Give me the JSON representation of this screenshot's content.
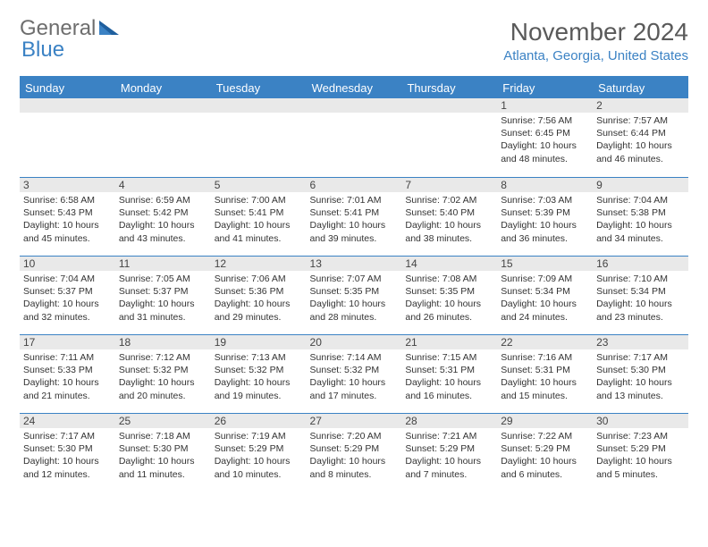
{
  "logo": {
    "part1": "General",
    "part2": "Blue"
  },
  "title": "November 2024",
  "location": "Atlanta, Georgia, United States",
  "colors": {
    "accent": "#3b82c4",
    "headerText": "#ffffff",
    "dayBar": "#e9e9e9",
    "text": "#333333",
    "logoGray": "#6e6e6e"
  },
  "dow": [
    "Sunday",
    "Monday",
    "Tuesday",
    "Wednesday",
    "Thursday",
    "Friday",
    "Saturday"
  ],
  "startOffset": 5,
  "days": [
    {
      "n": "1",
      "sunrise": "7:56 AM",
      "sunset": "6:45 PM",
      "daylight": "10 hours and 48 minutes."
    },
    {
      "n": "2",
      "sunrise": "7:57 AM",
      "sunset": "6:44 PM",
      "daylight": "10 hours and 46 minutes."
    },
    {
      "n": "3",
      "sunrise": "6:58 AM",
      "sunset": "5:43 PM",
      "daylight": "10 hours and 45 minutes."
    },
    {
      "n": "4",
      "sunrise": "6:59 AM",
      "sunset": "5:42 PM",
      "daylight": "10 hours and 43 minutes."
    },
    {
      "n": "5",
      "sunrise": "7:00 AM",
      "sunset": "5:41 PM",
      "daylight": "10 hours and 41 minutes."
    },
    {
      "n": "6",
      "sunrise": "7:01 AM",
      "sunset": "5:41 PM",
      "daylight": "10 hours and 39 minutes."
    },
    {
      "n": "7",
      "sunrise": "7:02 AM",
      "sunset": "5:40 PM",
      "daylight": "10 hours and 38 minutes."
    },
    {
      "n": "8",
      "sunrise": "7:03 AM",
      "sunset": "5:39 PM",
      "daylight": "10 hours and 36 minutes."
    },
    {
      "n": "9",
      "sunrise": "7:04 AM",
      "sunset": "5:38 PM",
      "daylight": "10 hours and 34 minutes."
    },
    {
      "n": "10",
      "sunrise": "7:04 AM",
      "sunset": "5:37 PM",
      "daylight": "10 hours and 32 minutes."
    },
    {
      "n": "11",
      "sunrise": "7:05 AM",
      "sunset": "5:37 PM",
      "daylight": "10 hours and 31 minutes."
    },
    {
      "n": "12",
      "sunrise": "7:06 AM",
      "sunset": "5:36 PM",
      "daylight": "10 hours and 29 minutes."
    },
    {
      "n": "13",
      "sunrise": "7:07 AM",
      "sunset": "5:35 PM",
      "daylight": "10 hours and 28 minutes."
    },
    {
      "n": "14",
      "sunrise": "7:08 AM",
      "sunset": "5:35 PM",
      "daylight": "10 hours and 26 minutes."
    },
    {
      "n": "15",
      "sunrise": "7:09 AM",
      "sunset": "5:34 PM",
      "daylight": "10 hours and 24 minutes."
    },
    {
      "n": "16",
      "sunrise": "7:10 AM",
      "sunset": "5:34 PM",
      "daylight": "10 hours and 23 minutes."
    },
    {
      "n": "17",
      "sunrise": "7:11 AM",
      "sunset": "5:33 PM",
      "daylight": "10 hours and 21 minutes."
    },
    {
      "n": "18",
      "sunrise": "7:12 AM",
      "sunset": "5:32 PM",
      "daylight": "10 hours and 20 minutes."
    },
    {
      "n": "19",
      "sunrise": "7:13 AM",
      "sunset": "5:32 PM",
      "daylight": "10 hours and 19 minutes."
    },
    {
      "n": "20",
      "sunrise": "7:14 AM",
      "sunset": "5:32 PM",
      "daylight": "10 hours and 17 minutes."
    },
    {
      "n": "21",
      "sunrise": "7:15 AM",
      "sunset": "5:31 PM",
      "daylight": "10 hours and 16 minutes."
    },
    {
      "n": "22",
      "sunrise": "7:16 AM",
      "sunset": "5:31 PM",
      "daylight": "10 hours and 15 minutes."
    },
    {
      "n": "23",
      "sunrise": "7:17 AM",
      "sunset": "5:30 PM",
      "daylight": "10 hours and 13 minutes."
    },
    {
      "n": "24",
      "sunrise": "7:17 AM",
      "sunset": "5:30 PM",
      "daylight": "10 hours and 12 minutes."
    },
    {
      "n": "25",
      "sunrise": "7:18 AM",
      "sunset": "5:30 PM",
      "daylight": "10 hours and 11 minutes."
    },
    {
      "n": "26",
      "sunrise": "7:19 AM",
      "sunset": "5:29 PM",
      "daylight": "10 hours and 10 minutes."
    },
    {
      "n": "27",
      "sunrise": "7:20 AM",
      "sunset": "5:29 PM",
      "daylight": "10 hours and 8 minutes."
    },
    {
      "n": "28",
      "sunrise": "7:21 AM",
      "sunset": "5:29 PM",
      "daylight": "10 hours and 7 minutes."
    },
    {
      "n": "29",
      "sunrise": "7:22 AM",
      "sunset": "5:29 PM",
      "daylight": "10 hours and 6 minutes."
    },
    {
      "n": "30",
      "sunrise": "7:23 AM",
      "sunset": "5:29 PM",
      "daylight": "10 hours and 5 minutes."
    }
  ],
  "labels": {
    "sunrise": "Sunrise:",
    "sunset": "Sunset:",
    "daylight": "Daylight:"
  }
}
